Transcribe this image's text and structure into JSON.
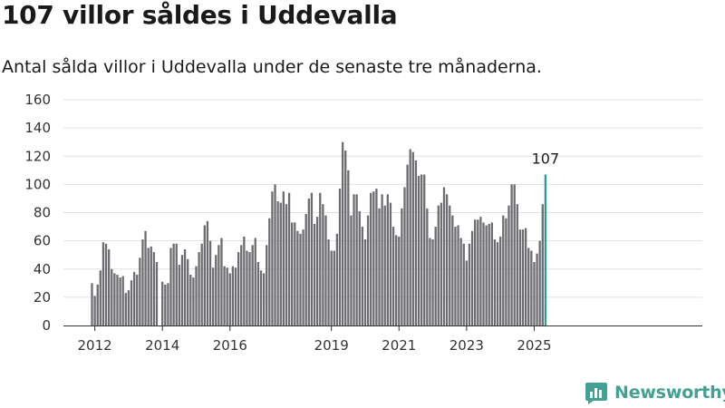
{
  "page": {
    "title": "107 villor såldes i Uddevalla",
    "subtitle": "Antal sålda villor i Uddevalla under de senaste tre månaderna."
  },
  "brand": {
    "name": "Newsworthy",
    "color": "#43a194"
  },
  "colors": {
    "bar": "#6d6c71",
    "highlight": "#2a9d8f",
    "grid": "#e1e1e1",
    "axis": "#333333"
  },
  "chart_data": {
    "type": "bar",
    "title": "107 villor såldes i Uddevalla",
    "subtitle": "Antal sålda villor i Uddevalla under de senaste tre månaderna.",
    "xlabel": "",
    "ylabel": "",
    "ylim": [
      0,
      160
    ],
    "yticks": [
      0,
      20,
      40,
      60,
      80,
      100,
      120,
      140,
      160
    ],
    "xticks": [
      "2012",
      "2014",
      "2016",
      "2019",
      "2021",
      "2023",
      "2025"
    ],
    "grid": true,
    "annotation": "107",
    "start": "2011-12",
    "end": "2025-06",
    "values": [
      30,
      21,
      29,
      39,
      59,
      58,
      54,
      40,
      37,
      36,
      34,
      35,
      23,
      25,
      32,
      38,
      36,
      48,
      61,
      67,
      55,
      56,
      52,
      45,
      0,
      31,
      29,
      30,
      55,
      58,
      58,
      43,
      50,
      54,
      47,
      36,
      34,
      42,
      52,
      58,
      71,
      74,
      60,
      41,
      50,
      57,
      62,
      42,
      41,
      37,
      42,
      41,
      52,
      57,
      63,
      53,
      52,
      57,
      62,
      45,
      39,
      37,
      57,
      76,
      95,
      100,
      88,
      87,
      95,
      86,
      94,
      73,
      73,
      67,
      65,
      68,
      79,
      90,
      94,
      72,
      77,
      94,
      86,
      78,
      61,
      53,
      53,
      65,
      97,
      130,
      124,
      110,
      78,
      93,
      93,
      81,
      70,
      61,
      78,
      94,
      95,
      97,
      83,
      93,
      85,
      93,
      87,
      70,
      64,
      63,
      83,
      98,
      114,
      125,
      123,
      117,
      106,
      107,
      107,
      83,
      62,
      61,
      70,
      85,
      87,
      98,
      93,
      85,
      78,
      70,
      71,
      62,
      58,
      46,
      58,
      67,
      75,
      75,
      77,
      73,
      71,
      72,
      73,
      61,
      59,
      63,
      78,
      76,
      85,
      100,
      100,
      86,
      68,
      68,
      69,
      55,
      53,
      45,
      51,
      60,
      86,
      107
    ]
  }
}
